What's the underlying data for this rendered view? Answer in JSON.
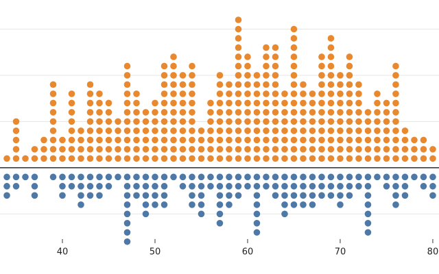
{
  "chart_data": {
    "type": "dot",
    "x": [
      34,
      35,
      36,
      37,
      38,
      39,
      40,
      41,
      42,
      43,
      44,
      45,
      46,
      47,
      48,
      49,
      50,
      51,
      52,
      53,
      54,
      55,
      56,
      57,
      58,
      59,
      60,
      61,
      62,
      63,
      64,
      65,
      66,
      67,
      68,
      69,
      70,
      71,
      72,
      73,
      74,
      75,
      76,
      77,
      78,
      79,
      80
    ],
    "series": [
      {
        "color": "#e8892f",
        "values": [
          1,
          5,
          1,
          2,
          3,
          9,
          3,
          8,
          4,
          9,
          8,
          7,
          5,
          11,
          8,
          6,
          7,
          11,
          12,
          10,
          11,
          4,
          7,
          10,
          9,
          16,
          12,
          10,
          13,
          13,
          8,
          15,
          9,
          8,
          12,
          14,
          10,
          12,
          9,
          6,
          8,
          7,
          11,
          4,
          3,
          3,
          2
        ]
      },
      {
        "color": "#4e79a7",
        "values": [
          -3,
          -2,
          -1,
          -3,
          0,
          -1,
          -3,
          -2,
          -4,
          -3,
          -3,
          -2,
          -1,
          -8,
          -3,
          -5,
          -4,
          -4,
          -1,
          -2,
          -4,
          -5,
          -2,
          -6,
          -4,
          -3,
          -2,
          -7,
          -2,
          -3,
          -5,
          -4,
          -4,
          -4,
          -3,
          -3,
          -4,
          -3,
          -2,
          -7,
          -1,
          -2,
          -4,
          -3,
          -1,
          -2,
          -3
        ]
      }
    ],
    "xlim": [
      33.26,
      80.67
    ],
    "xticks": [
      40,
      50,
      60,
      70,
      80
    ],
    "ylim": [
      -11.5,
      18.15
    ],
    "yticks": [
      -5,
      5,
      10,
      15
    ],
    "grid": true
  }
}
